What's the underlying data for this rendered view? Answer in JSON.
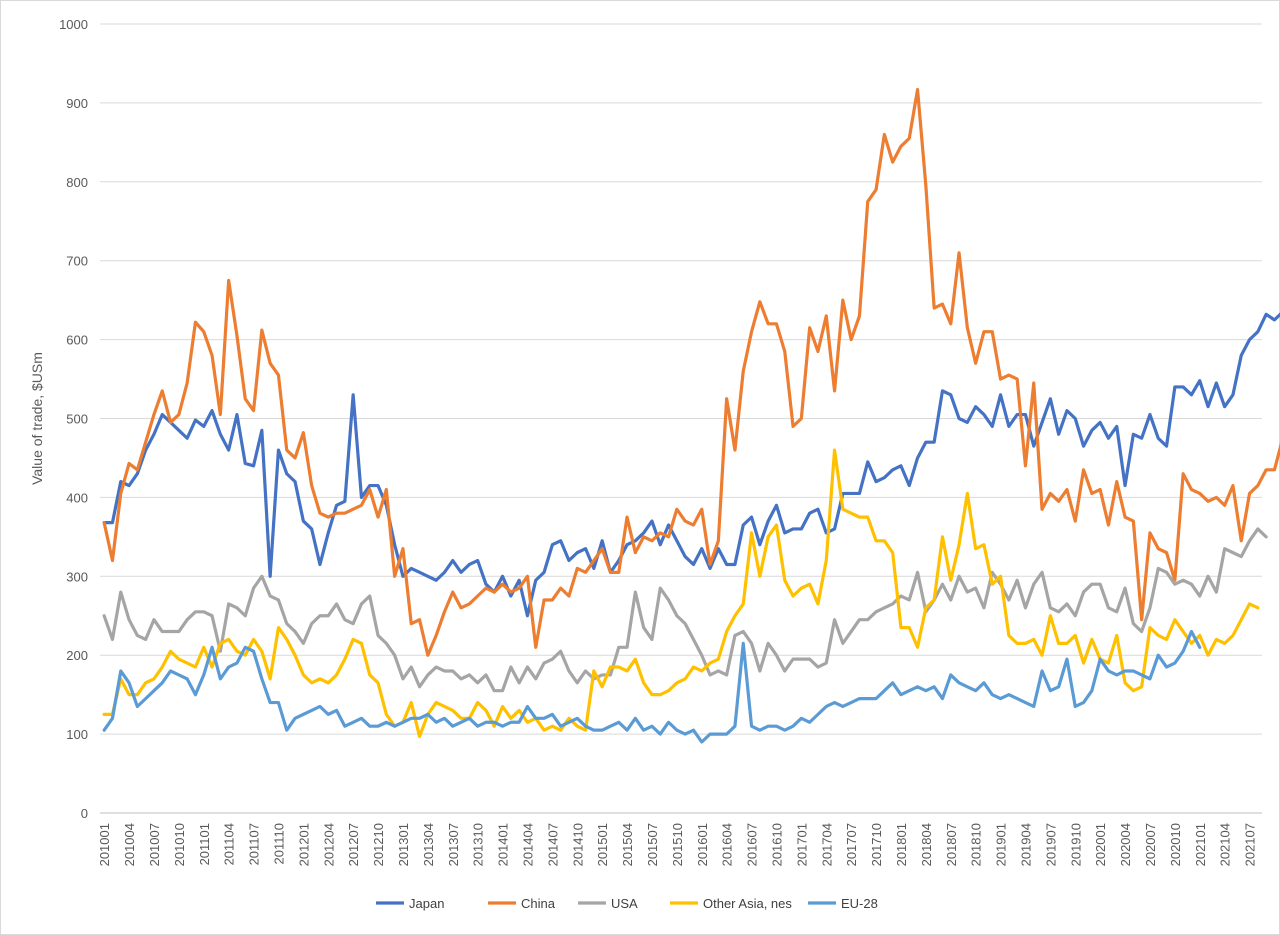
{
  "chart_data": {
    "type": "line",
    "title": "",
    "ylabel": "Value of trade, $USm",
    "xlabel": "",
    "ylim": [
      0,
      1000
    ],
    "yticks": [
      "0",
      "100",
      "200",
      "300",
      "400",
      "500",
      "600",
      "700",
      "800",
      "900",
      "1000"
    ],
    "grid": true,
    "legend_position": "bottom",
    "x_tick_labels": [
      "201001",
      "201004",
      "201007",
      "201010",
      "201101",
      "201104",
      "201107",
      "201110",
      "201201",
      "201204",
      "201207",
      "201210",
      "201301",
      "201304",
      "201307",
      "201310",
      "201401",
      "201404",
      "201407",
      "201410",
      "201501",
      "201504",
      "201507",
      "201510",
      "201601",
      "201604",
      "201607",
      "201610",
      "201701",
      "201704",
      "201707",
      "201710",
      "201801",
      "201804",
      "201807",
      "201810",
      "201901",
      "201904",
      "201907",
      "201910",
      "202001",
      "202004",
      "202007",
      "202010",
      "202101",
      "202104",
      "202107"
    ],
    "x_start": "201001",
    "x_end": "202108",
    "series": [
      {
        "name": "Japan",
        "color": "#4472c4",
        "values": [
          368,
          368,
          420,
          415,
          430,
          460,
          480,
          505,
          495,
          485,
          475,
          498,
          490,
          510,
          480,
          460,
          505,
          443,
          440,
          485,
          300,
          460,
          430,
          420,
          370,
          360,
          315,
          355,
          390,
          395,
          530,
          400,
          415,
          415,
          390,
          340,
          300,
          310,
          305,
          300,
          295,
          305,
          320,
          305,
          315,
          320,
          290,
          280,
          300,
          275,
          295,
          250,
          295,
          305,
          340,
          345,
          320,
          330,
          335,
          310,
          345,
          305,
          320,
          340,
          345,
          355,
          370,
          340,
          365,
          345,
          325,
          315,
          335,
          310,
          335,
          315,
          315,
          365,
          375,
          340,
          370,
          390,
          355,
          360,
          360,
          380,
          385,
          355,
          360,
          405,
          405,
          405,
          445,
          420,
          425,
          435,
          440,
          415,
          450,
          470,
          470,
          535,
          530,
          500,
          495,
          515,
          505,
          490,
          530,
          490,
          505,
          505,
          465,
          495,
          525,
          480,
          510,
          500,
          465,
          485,
          495,
          475,
          490,
          415,
          480,
          475,
          505,
          475,
          465,
          540,
          540,
          530,
          548,
          515,
          545,
          515,
          530,
          580,
          600,
          610,
          632,
          625,
          635
        ]
      },
      {
        "name": "China",
        "color": "#ed7d31",
        "values": [
          368,
          320,
          405,
          443,
          435,
          470,
          505,
          535,
          495,
          505,
          545,
          622,
          610,
          580,
          505,
          675,
          605,
          525,
          510,
          612,
          570,
          555,
          460,
          450,
          482,
          415,
          380,
          375,
          380,
          380,
          385,
          390,
          410,
          375,
          410,
          300,
          335,
          240,
          245,
          200,
          225,
          255,
          280,
          260,
          265,
          275,
          285,
          280,
          290,
          280,
          285,
          300,
          210,
          270,
          270,
          285,
          275,
          310,
          305,
          320,
          335,
          305,
          305,
          375,
          330,
          350,
          345,
          355,
          350,
          385,
          370,
          365,
          385,
          315,
          345,
          525,
          460,
          560,
          610,
          648,
          620,
          620,
          585,
          490,
          500,
          615,
          585,
          630,
          535,
          650,
          600,
          630,
          775,
          790,
          860,
          825,
          845,
          855,
          917,
          795,
          640,
          645,
          620,
          710,
          615,
          570,
          610,
          610,
          550,
          555,
          550,
          440,
          545,
          385,
          405,
          395,
          410,
          370,
          435,
          405,
          410,
          365,
          420,
          375,
          370,
          245,
          355,
          335,
          330,
          295,
          430,
          410,
          405,
          395,
          400,
          390,
          415,
          345,
          405,
          415,
          435,
          435,
          475,
          470
        ]
      },
      {
        "name": "USA",
        "color": "#a5a5a5",
        "values": [
          250,
          220,
          280,
          245,
          225,
          220,
          245,
          230,
          230,
          230,
          245,
          255,
          255,
          250,
          205,
          265,
          260,
          250,
          285,
          300,
          275,
          270,
          240,
          230,
          215,
          240,
          250,
          250,
          265,
          245,
          240,
          265,
          275,
          225,
          215,
          200,
          170,
          185,
          160,
          175,
          185,
          180,
          180,
          170,
          175,
          165,
          175,
          155,
          155,
          185,
          165,
          185,
          170,
          190,
          195,
          205,
          180,
          165,
          180,
          170,
          175,
          175,
          210,
          210,
          280,
          235,
          220,
          285,
          270,
          250,
          240,
          220,
          200,
          175,
          180,
          175,
          225,
          230,
          215,
          180,
          215,
          200,
          180,
          195,
          195,
          195,
          185,
          190,
          245,
          215,
          230,
          245,
          245,
          255,
          260,
          265,
          275,
          270,
          305,
          255,
          270,
          290,
          270,
          300,
          280,
          285,
          260,
          305,
          290,
          270,
          295,
          260,
          290,
          305,
          260,
          255,
          265,
          250,
          280,
          290,
          290,
          260,
          255,
          285,
          240,
          230,
          260,
          310,
          305,
          290,
          295,
          290,
          275,
          300,
          280,
          335,
          330,
          325,
          345,
          360,
          350
        ]
      },
      {
        "name": "Other Asia, nes",
        "color": "#ffc000",
        "values": [
          125,
          125,
          170,
          150,
          150,
          165,
          170,
          185,
          205,
          195,
          190,
          185,
          210,
          185,
          215,
          220,
          205,
          200,
          220,
          205,
          170,
          235,
          220,
          200,
          175,
          165,
          170,
          165,
          175,
          195,
          220,
          215,
          175,
          165,
          125,
          110,
          115,
          140,
          97,
          125,
          140,
          135,
          130,
          120,
          120,
          140,
          130,
          110,
          135,
          120,
          130,
          115,
          120,
          105,
          110,
          105,
          120,
          110,
          105,
          180,
          160,
          185,
          185,
          180,
          195,
          165,
          150,
          150,
          155,
          165,
          170,
          185,
          180,
          190,
          195,
          230,
          250,
          265,
          355,
          300,
          350,
          365,
          295,
          275,
          285,
          290,
          265,
          320,
          460,
          385,
          380,
          375,
          375,
          345,
          345,
          330,
          235,
          235,
          210,
          260,
          270,
          350,
          295,
          340,
          405,
          335,
          340,
          290,
          300,
          225,
          215,
          215,
          220,
          200,
          250,
          215,
          215,
          225,
          190,
          220,
          195,
          190,
          225,
          165,
          155,
          160,
          235,
          225,
          220,
          245,
          230,
          215,
          225,
          200,
          220,
          215,
          225,
          245,
          265,
          260
        ]
      },
      {
        "name": "EU-28",
        "color": "#5b9bd5",
        "values": [
          105,
          120,
          180,
          165,
          135,
          145,
          155,
          165,
          180,
          175,
          170,
          150,
          175,
          210,
          170,
          185,
          190,
          210,
          205,
          170,
          140,
          140,
          105,
          120,
          125,
          130,
          135,
          125,
          130,
          110,
          115,
          120,
          110,
          110,
          115,
          110,
          115,
          120,
          120,
          125,
          115,
          120,
          110,
          115,
          120,
          110,
          115,
          115,
          110,
          115,
          115,
          135,
          120,
          120,
          125,
          110,
          115,
          120,
          110,
          105,
          105,
          110,
          115,
          105,
          120,
          105,
          110,
          100,
          115,
          105,
          100,
          105,
          90,
          100,
          100,
          100,
          110,
          215,
          110,
          105,
          110,
          110,
          105,
          110,
          120,
          115,
          125,
          135,
          140,
          135,
          140,
          145,
          145,
          145,
          155,
          165,
          150,
          155,
          160,
          155,
          160,
          145,
          175,
          165,
          160,
          155,
          165,
          150,
          145,
          150,
          145,
          140,
          135,
          180,
          155,
          160,
          195,
          135,
          140,
          155,
          195,
          180,
          175,
          180,
          180,
          175,
          170,
          200,
          185,
          190,
          205,
          230,
          210
        ]
      }
    ]
  }
}
